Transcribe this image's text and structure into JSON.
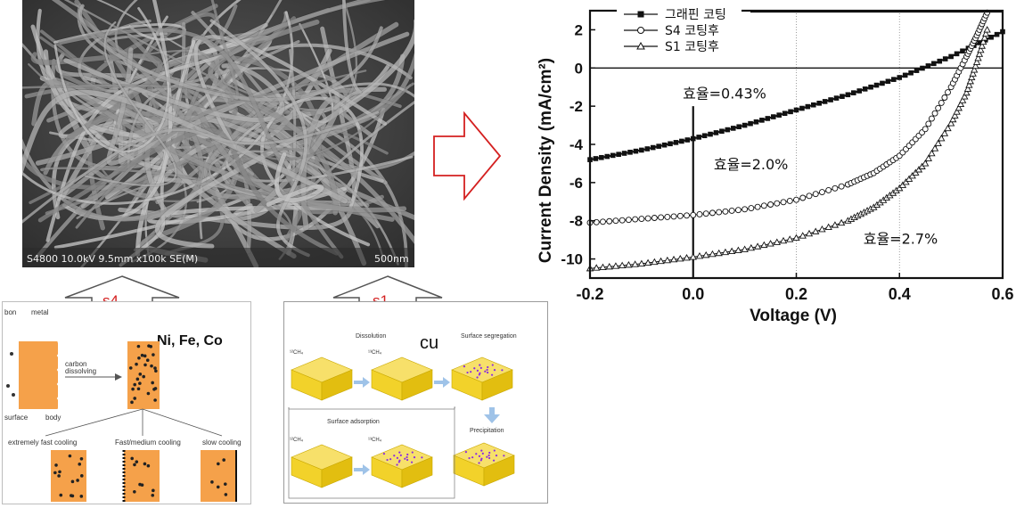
{
  "sem": {
    "label": "S4800 10.0kV 9.5mm x100k SE(M)",
    "scale": "500nm"
  },
  "arrows": {
    "left_label": "s4",
    "right_label": "s1",
    "color": "#d42020"
  },
  "ni_panel": {
    "title": "Ni, Fe, Co",
    "bon": "bon",
    "metal": "metal",
    "carbon": "carbon",
    "dissolving": "dissolving",
    "surface": "surface",
    "body": "body",
    "fast": "extremely fast cooling",
    "medium": "Fast/medium cooling",
    "slow": "slow cooling",
    "metal_color": "#f5a14a"
  },
  "cu_panel": {
    "title": "cu",
    "dissolution": "Dissolution",
    "segregation": "Surface segregation",
    "adsorption": "Surface adsorption",
    "precipitation": "Precipitation",
    "ch4_a": "¹²CH₄",
    "ch4_b": "¹³CH₄",
    "ch4_c": "¹²CH₄",
    "ch4_d": "¹³CH₄",
    "block_color": "#f2d22a"
  },
  "chart_data": {
    "type": "line",
    "xlabel": "Voltage (V)",
    "ylabel": "Current Density (mA/cm²)",
    "xlim": [
      -0.2,
      0.6
    ],
    "ylim": [
      -11,
      3
    ],
    "xticks": [
      "-0.2",
      "0.0",
      "0.2",
      "0.4",
      "0.6"
    ],
    "yticks": [
      "2",
      "0",
      "-2",
      "-4",
      "-6",
      "-8",
      "-10"
    ],
    "grid": "dotted vertical lines at 0.2, 0.4, 0.6",
    "legend_position": "top-left",
    "series": [
      {
        "name": "그래핀 코팅",
        "marker": "filled-square",
        "x": [
          -0.2,
          -0.1,
          0.0,
          0.1,
          0.2,
          0.3,
          0.4,
          0.5,
          0.6
        ],
        "y": [
          -4.8,
          -4.3,
          -3.7,
          -3.0,
          -2.2,
          -1.4,
          -0.5,
          0.6,
          1.9
        ]
      },
      {
        "name": "S4 코팅후",
        "marker": "open-circle",
        "x": [
          -0.2,
          -0.1,
          0.0,
          0.1,
          0.2,
          0.3,
          0.35,
          0.4,
          0.45,
          0.5,
          0.53,
          0.55,
          0.57
        ],
        "y": [
          -8.1,
          -7.9,
          -7.7,
          -7.4,
          -6.9,
          -6.1,
          -5.5,
          -4.6,
          -3.2,
          -1.0,
          0.6,
          1.7,
          2.9
        ]
      },
      {
        "name": "S1 코팅후",
        "marker": "open-triangle",
        "x": [
          -0.2,
          -0.1,
          0.0,
          0.1,
          0.2,
          0.3,
          0.35,
          0.4,
          0.45,
          0.5,
          0.53,
          0.55,
          0.57
        ],
        "y": [
          -10.5,
          -10.25,
          -9.9,
          -9.5,
          -8.9,
          -8.0,
          -7.3,
          -6.3,
          -5.0,
          -2.9,
          -1.3,
          0.3,
          2.0
        ]
      }
    ],
    "annotations": [
      {
        "text": "효율=0.43%",
        "x": -0.02,
        "y": -1.6
      },
      {
        "text": "효율=2.0%",
        "x": 0.04,
        "y": -5.3
      },
      {
        "text": "효율=2.7%",
        "x": 0.33,
        "y": -9.2
      }
    ]
  }
}
